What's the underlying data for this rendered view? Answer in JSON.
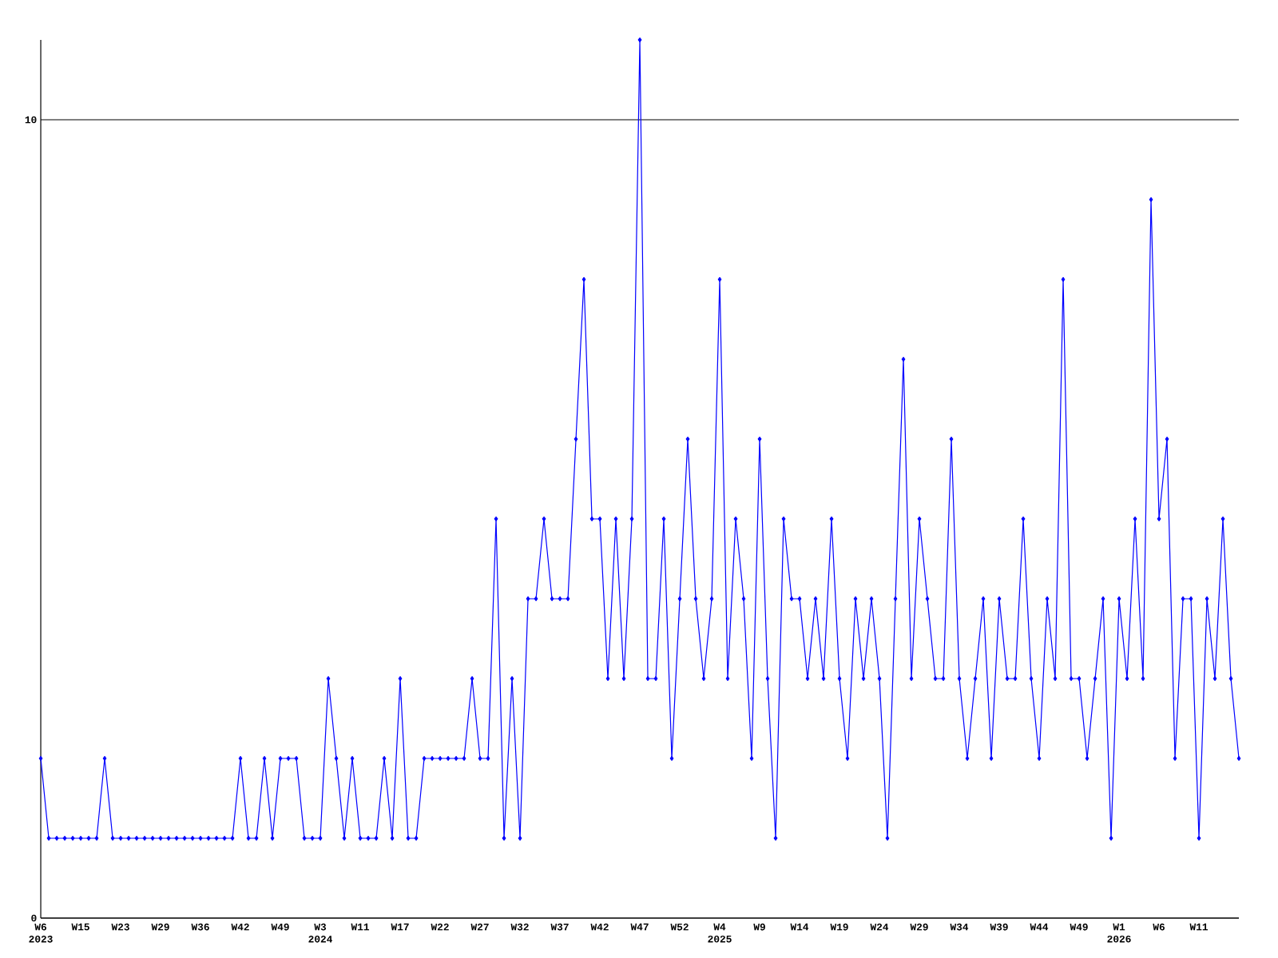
{
  "chart_data": {
    "type": "line",
    "categories": [
      "W6 2023",
      null,
      null,
      null,
      null,
      "W15",
      null,
      null,
      null,
      null,
      "W23",
      null,
      null,
      null,
      null,
      "W29",
      null,
      null,
      null,
      null,
      "W36",
      null,
      null,
      null,
      null,
      "W42",
      null,
      null,
      null,
      null,
      "W49",
      null,
      null,
      null,
      null,
      "W3 2024",
      null,
      null,
      null,
      null,
      "W11",
      null,
      null,
      null,
      null,
      "W17",
      null,
      null,
      null,
      null,
      "W22",
      null,
      null,
      null,
      null,
      "W27",
      null,
      null,
      null,
      null,
      "W32",
      null,
      null,
      null,
      null,
      "W37",
      null,
      null,
      null,
      null,
      "W42",
      null,
      null,
      null,
      null,
      "W47",
      null,
      null,
      null,
      null,
      "W52",
      null,
      null,
      null,
      null,
      "W4 2025",
      null,
      null,
      null,
      null,
      "W9",
      null,
      null,
      null,
      null,
      "W14",
      null,
      null,
      null,
      null,
      "W19",
      null,
      null,
      null,
      null,
      "W24",
      null,
      null,
      null,
      null,
      "W29",
      null,
      null,
      null,
      null,
      "W34",
      null,
      null,
      null,
      null,
      "W39",
      null,
      null,
      null,
      null,
      "W44",
      null,
      null,
      null,
      null,
      "W49",
      null,
      null,
      null,
      null,
      "W1 2026",
      null,
      null,
      null,
      null,
      "W6",
      null,
      null,
      null,
      null,
      "W11",
      null,
      null,
      null,
      null,
      null
    ],
    "values": [
      2,
      1,
      1,
      1,
      1,
      1,
      1,
      1,
      2,
      1,
      1,
      1,
      1,
      1,
      1,
      1,
      1,
      1,
      1,
      1,
      1,
      1,
      1,
      1,
      1,
      2,
      1,
      1,
      2,
      1,
      2,
      2,
      2,
      1,
      1,
      1,
      3,
      2,
      1,
      2,
      1,
      1,
      1,
      2,
      1,
      3,
      1,
      1,
      2,
      2,
      2,
      2,
      2,
      2,
      3,
      2,
      2,
      5,
      1,
      3,
      1,
      4,
      4,
      5,
      4,
      4,
      4,
      6,
      8,
      5,
      5,
      3,
      5,
      3,
      5,
      11,
      3,
      3,
      5,
      2,
      4,
      6,
      4,
      3,
      4,
      8,
      3,
      5,
      4,
      2,
      6,
      3,
      1,
      5,
      4,
      4,
      3,
      4,
      3,
      5,
      3,
      2,
      4,
      3,
      4,
      3,
      1,
      4,
      7,
      3,
      5,
      4,
      3,
      3,
      6,
      3,
      2,
      3,
      4,
      2,
      4,
      3,
      3,
      5,
      3,
      2,
      4,
      3,
      8,
      3,
      3,
      2,
      3,
      4,
      1,
      4,
      3,
      5,
      3,
      9,
      5,
      6,
      2,
      4,
      4,
      1,
      4,
      3,
      5,
      3,
      2
    ],
    "color": "#0000ff",
    "marker": "diamond",
    "grid": "y",
    "ylim": [
      0,
      11
    ],
    "yticks": [
      0,
      10
    ]
  }
}
